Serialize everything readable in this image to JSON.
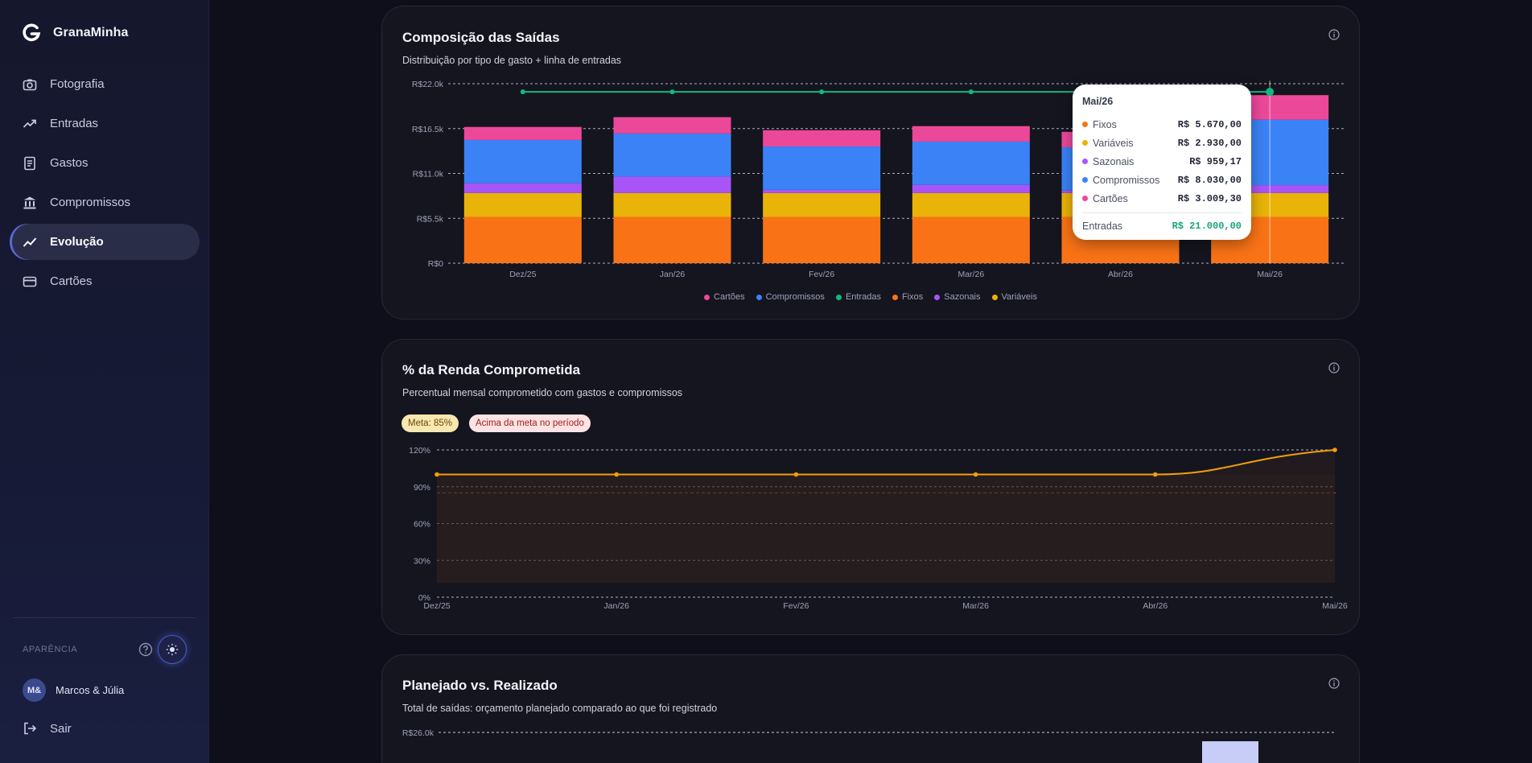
{
  "app": {
    "name": "GranaMinha"
  },
  "sidebar": {
    "items": [
      {
        "label": "Fotografia",
        "icon": "camera-icon"
      },
      {
        "label": "Entradas",
        "icon": "trending-up-icon"
      },
      {
        "label": "Gastos",
        "icon": "receipt-icon"
      },
      {
        "label": "Compromissos",
        "icon": "bank-icon"
      },
      {
        "label": "Evolução",
        "icon": "line-chart-icon",
        "active": true
      },
      {
        "label": "Cartões",
        "icon": "credit-card-icon"
      }
    ],
    "appearance_label": "APARÊNCIA",
    "user": {
      "initials": "M&",
      "name": "Marcos & Júlia"
    },
    "logout_label": "Sair"
  },
  "cards": {
    "composicao": {
      "title": "Composição das Saídas",
      "subtitle": "Distribuição por tipo de gasto + linha de entradas"
    },
    "renda": {
      "title": "% da Renda Comprometida",
      "subtitle": "Percentual mensal comprometido com gastos e compromissos",
      "badge_meta": "Meta: 85%",
      "badge_alert": "Acima da meta no período"
    },
    "planejado": {
      "title": "Planejado vs. Realizado",
      "subtitle": "Total de saídas: orçamento planejado comparado ao que foi registrado",
      "y_top_label": "R$26.0k"
    }
  },
  "tooltip": {
    "title": "Mai/26",
    "rows": [
      {
        "label": "Fixos",
        "value": "R$ 5.670,00",
        "color": "#f97316"
      },
      {
        "label": "Variáveis",
        "value": "R$ 2.930,00",
        "color": "#eab308"
      },
      {
        "label": "Sazonais",
        "value": "R$ 959,17",
        "color": "#a855f7"
      },
      {
        "label": "Compromissos",
        "value": "R$ 8.030,00",
        "color": "#3b82f6"
      },
      {
        "label": "Cartões",
        "value": "R$ 3.009,30",
        "color": "#ec4899"
      }
    ],
    "total": {
      "label": "Entradas",
      "value": "R$ 21.000,00"
    }
  },
  "chart_data": [
    {
      "type": "bar",
      "stacked": true,
      "title": "Composição das Saídas",
      "categories": [
        "Dez/25",
        "Jan/26",
        "Fev/26",
        "Mar/26",
        "Abr/26",
        "Mai/26"
      ],
      "y_ticks": [
        "R$0",
        "R$5.5k",
        "R$11.0k",
        "R$16.5k",
        "R$22.0k"
      ],
      "ylim": [
        0,
        22000
      ],
      "grid": true,
      "legend_position": "bottom",
      "series": [
        {
          "name": "Fixos",
          "color": "#f97316",
          "values": [
            5670,
            5670,
            5670,
            5670,
            5670,
            5670
          ]
        },
        {
          "name": "Variáveis",
          "color": "#eab308",
          "values": [
            2930,
            2930,
            2930,
            2930,
            2930,
            2930
          ]
        },
        {
          "name": "Sazonais",
          "color": "#a855f7",
          "values": [
            1200,
            2000,
            400,
            1000,
            300,
            959.17
          ]
        },
        {
          "name": "Compromissos",
          "color": "#3b82f6",
          "values": [
            5300,
            5300,
            5300,
            5300,
            5300,
            8030
          ]
        },
        {
          "name": "Cartões",
          "color": "#ec4899",
          "values": [
            1600,
            2000,
            2000,
            1900,
            1900,
            3009.3
          ]
        }
      ],
      "line_series": {
        "name": "Entradas",
        "color": "#10b981",
        "values": [
          21000,
          21000,
          21000,
          21000,
          21000,
          21000
        ]
      },
      "legend": [
        {
          "name": "Cartões",
          "color": "#ec4899"
        },
        {
          "name": "Compromissos",
          "color": "#3b82f6"
        },
        {
          "name": "Entradas",
          "color": "#10b981"
        },
        {
          "name": "Fixos",
          "color": "#f97316"
        },
        {
          "name": "Sazonais",
          "color": "#a855f7"
        },
        {
          "name": "Variáveis",
          "color": "#eab308"
        }
      ]
    },
    {
      "type": "area",
      "title": "% da Renda Comprometida",
      "categories": [
        "Dez/25",
        "Jan/26",
        "Fev/26",
        "Mar/26",
        "Abr/26",
        "Mai/26"
      ],
      "y_ticks": [
        "0%",
        "30%",
        "60%",
        "90%",
        "120%"
      ],
      "ylim": [
        0,
        120
      ],
      "values": [
        100,
        100,
        100,
        100,
        100,
        120
      ],
      "target": 85,
      "grid": true
    }
  ]
}
